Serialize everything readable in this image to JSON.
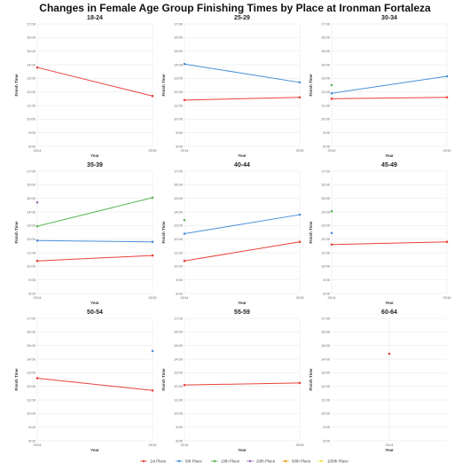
{
  "chart_data": {
    "type": "line",
    "title": "Changes in Female Age Group Finishing Times by Place at Ironman Fortaleza",
    "xlabel": "Year",
    "ylabel": "Finish Time",
    "y_ticks": [
      "8:00",
      "9:00",
      "10:00",
      "11:00",
      "12:00",
      "13:00",
      "14:00",
      "15:00",
      "16:00",
      "17:00"
    ],
    "ylim": [
      8,
      17
    ],
    "x_ticks": [
      "2014",
      "2015"
    ],
    "grid": true,
    "legend_position": "bottom",
    "legend": [
      {
        "name": "1st Place",
        "color": "#e8423a"
      },
      {
        "name": "5th Place",
        "color": "#4a90d9"
      },
      {
        "name": "10th Place",
        "color": "#5ab552"
      },
      {
        "name": "20th Place",
        "color": "#a06bb8"
      },
      {
        "name": "50th Place",
        "color": "#f0a020"
      },
      {
        "name": "100th Place",
        "color": "#f0e040"
      }
    ],
    "panels": [
      {
        "title": "18-24",
        "x": [
          "2014",
          "2015"
        ],
        "series": [
          {
            "name": "1st Place",
            "values": [
              13.8,
              11.7
            ]
          }
        ]
      },
      {
        "title": "25-29",
        "x": [
          "2014",
          "2015"
        ],
        "series": [
          {
            "name": "5th Place",
            "values": [
              14.05,
              12.7
            ]
          },
          {
            "name": "1st Place",
            "values": [
              11.4,
              11.6
            ]
          }
        ]
      },
      {
        "title": "30-34",
        "x": [
          "2014",
          "2015"
        ],
        "series": [
          {
            "name": "5th Place",
            "values": [
              11.9,
              13.15
            ]
          },
          {
            "name": "10th Place",
            "values": [
              12.5,
              null
            ]
          },
          {
            "name": "1st Place",
            "values": [
              11.5,
              11.6
            ]
          }
        ]
      },
      {
        "title": "35-39",
        "x": [
          "2014",
          "2015"
        ],
        "series": [
          {
            "name": "20th Place",
            "values": [
              14.7,
              null
            ]
          },
          {
            "name": "10th Place",
            "values": [
              12.95,
              15.05
            ]
          },
          {
            "name": "5th Place",
            "values": [
              11.9,
              11.8
            ]
          },
          {
            "name": "1st Place",
            "values": [
              10.4,
              10.8
            ]
          }
        ]
      },
      {
        "title": "40-44",
        "x": [
          "2014",
          "2015"
        ],
        "series": [
          {
            "name": "10th Place",
            "values": [
              13.4,
              null
            ]
          },
          {
            "name": "5th Place",
            "values": [
              12.4,
              13.8
            ]
          },
          {
            "name": "1st Place",
            "values": [
              10.4,
              11.8
            ]
          }
        ]
      },
      {
        "title": "45-49",
        "x": [
          "2014",
          "2015"
        ],
        "series": [
          {
            "name": "10th Place",
            "values": [
              14.05,
              null
            ]
          },
          {
            "name": "5th Place",
            "values": [
              12.45,
              null
            ]
          },
          {
            "name": "1st Place",
            "values": [
              11.6,
              11.8
            ]
          }
        ]
      },
      {
        "title": "50-54",
        "x": [
          "2014",
          "2015"
        ],
        "series": [
          {
            "name": "5th Place",
            "values": [
              null,
              14.6
            ]
          },
          {
            "name": "1st Place",
            "values": [
              12.6,
              11.7
            ]
          }
        ]
      },
      {
        "title": "55-59",
        "x": [
          "2014",
          "2015"
        ],
        "series": [
          {
            "name": "1st Place",
            "values": [
              12.1,
              12.25
            ]
          }
        ]
      },
      {
        "title": "60-64",
        "x": [
          "2014"
        ],
        "series": [
          {
            "name": "1st Place",
            "values": [
              14.4
            ]
          }
        ]
      }
    ]
  }
}
